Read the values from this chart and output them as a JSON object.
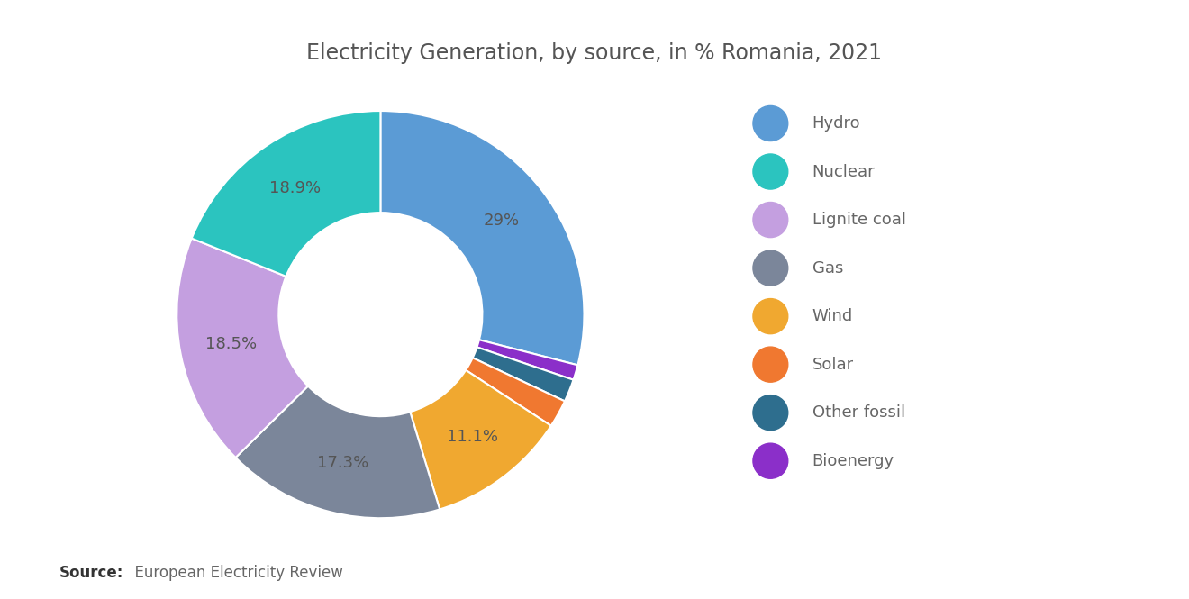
{
  "title": "Electricity Generation, by source, in % Romania, 2021",
  "source_bold": "Source:",
  "source_rest": "  European Electricity Review",
  "labels": [
    "Hydro",
    "Nuclear",
    "Lignite coal",
    "Gas",
    "Wind",
    "Solar",
    "Other fossil",
    "Bioenergy"
  ],
  "values": [
    29.0,
    18.9,
    18.5,
    17.3,
    11.1,
    2.2,
    1.8,
    1.2
  ],
  "colors": [
    "#5B9BD5",
    "#2BC4BF",
    "#C49FE0",
    "#7B869A",
    "#F0A830",
    "#F07830",
    "#2E6E8E",
    "#8B2FC9"
  ],
  "label_display": [
    "29%",
    "18.9%",
    "18.5%",
    "17.3%",
    "11.1%",
    "",
    "",
    ""
  ],
  "bg_color": "#FFFFFF",
  "title_color": "#555555",
  "title_fontsize": 17,
  "legend_fontsize": 13,
  "label_fontsize": 13,
  "wedge_edge_color": "#FFFFFF",
  "donut_width": 0.5
}
